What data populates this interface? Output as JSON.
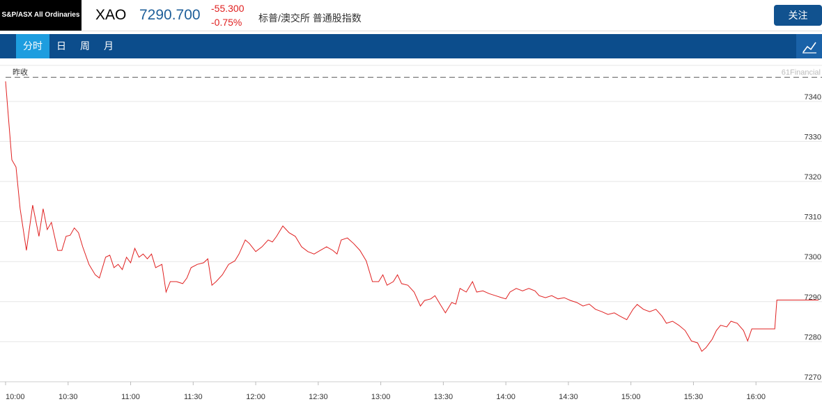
{
  "header": {
    "index_name": "S&P/ASX All Ordinaries",
    "symbol": "XAO",
    "price": "7290.700",
    "change": "-55.300",
    "change_pct": "-0.75%",
    "description": "标普/澳交所 普通股指数",
    "follow_button": "关注"
  },
  "tabs": [
    "分时",
    "日",
    "周",
    "月"
  ],
  "chart_data": {
    "type": "line",
    "grid": true,
    "reference_line": {
      "label": "昨收",
      "value": 7346,
      "color": "#777777"
    },
    "watermark": "61Financial",
    "xlim": [
      "10:00",
      "16:30"
    ],
    "xticks": [
      "10:00",
      "10:30",
      "11:00",
      "11:30",
      "12:00",
      "12:30",
      "13:00",
      "13:30",
      "14:00",
      "14:30",
      "15:00",
      "15:30",
      "16:00"
    ],
    "ylim": [
      7270,
      7349
    ],
    "yticks": [
      7270,
      7280,
      7290,
      7300,
      7310,
      7320,
      7330,
      7340
    ],
    "series": [
      {
        "color": "#e02020",
        "x": [
          "10:00",
          "10:01",
          "10:03",
          "10:05",
          "10:07",
          "10:10",
          "10:13",
          "10:16",
          "10:18",
          "10:20",
          "10:22",
          "10:25",
          "10:27",
          "10:29",
          "10:31",
          "10:33",
          "10:35",
          "10:37",
          "10:40",
          "10:43",
          "10:45",
          "10:48",
          "10:50",
          "10:52",
          "10:54",
          "10:56",
          "10:58",
          "11:00",
          "11:02",
          "11:04",
          "11:06",
          "11:08",
          "11:10",
          "11:12",
          "11:15",
          "11:17",
          "11:19",
          "11:22",
          "11:25",
          "11:27",
          "11:29",
          "11:32",
          "11:35",
          "11:37",
          "11:39",
          "11:41",
          "11:44",
          "11:47",
          "11:50",
          "11:52",
          "11:55",
          "11:57",
          "12:00",
          "12:03",
          "12:06",
          "12:08",
          "12:10",
          "12:13",
          "12:16",
          "12:19",
          "12:22",
          "12:25",
          "12:28",
          "12:31",
          "12:34",
          "12:37",
          "12:39",
          "12:41",
          "12:44",
          "12:47",
          "12:50",
          "12:53",
          "12:56",
          "12:59",
          "13:01",
          "13:03",
          "13:06",
          "13:08",
          "13:10",
          "13:13",
          "13:16",
          "13:19",
          "13:21",
          "13:24",
          "13:26",
          "13:29",
          "13:31",
          "13:34",
          "13:36",
          "13:38",
          "13:41",
          "13:44",
          "13:46",
          "13:49",
          "13:52",
          "13:55",
          "13:58",
          "14:00",
          "14:02",
          "14:05",
          "14:08",
          "14:11",
          "14:14",
          "14:16",
          "14:19",
          "14:22",
          "14:25",
          "14:28",
          "14:31",
          "14:34",
          "14:37",
          "14:40",
          "14:43",
          "14:46",
          "14:49",
          "14:52",
          "14:55",
          "14:58",
          "15:01",
          "15:03",
          "15:06",
          "15:09",
          "15:12",
          "15:15",
          "15:17",
          "15:20",
          "15:23",
          "15:26",
          "15:29",
          "15:32",
          "15:34",
          "15:36",
          "15:39",
          "15:41",
          "15:43",
          "15:46",
          "15:48",
          "15:51",
          "15:54",
          "15:56",
          "15:58",
          "16:00",
          "16:09",
          "16:10",
          "16:30"
        ],
        "values": [
          7345.0,
          7338.4,
          7325.4,
          7323.6,
          7313.2,
          7302.8,
          7314.1,
          7306.3,
          7313.2,
          7308.0,
          7309.8,
          7302.8,
          7302.8,
          7306.3,
          7306.6,
          7308.4,
          7307.2,
          7303.7,
          7299.3,
          7296.7,
          7295.9,
          7301.1,
          7301.6,
          7298.5,
          7299.3,
          7298.0,
          7301.1,
          7299.7,
          7303.3,
          7301.1,
          7301.9,
          7300.7,
          7301.9,
          7298.5,
          7299.3,
          7292.4,
          7295.0,
          7295.0,
          7294.5,
          7295.9,
          7298.5,
          7299.3,
          7299.7,
          7300.7,
          7294.1,
          7295.0,
          7296.7,
          7299.3,
          7300.2,
          7301.9,
          7305.4,
          7304.5,
          7302.5,
          7303.7,
          7305.4,
          7304.9,
          7306.3,
          7308.9,
          7307.2,
          7306.3,
          7303.7,
          7302.5,
          7301.9,
          7302.8,
          7303.7,
          7302.8,
          7301.9,
          7305.4,
          7305.9,
          7304.5,
          7302.8,
          7300.2,
          7295.0,
          7295.0,
          7296.7,
          7294.1,
          7295.0,
          7296.7,
          7294.5,
          7294.1,
          7292.4,
          7288.9,
          7290.3,
          7290.7,
          7291.5,
          7288.9,
          7287.2,
          7289.8,
          7289.4,
          7293.3,
          7292.4,
          7295.0,
          7292.4,
          7292.7,
          7292.0,
          7291.5,
          7291.0,
          7290.7,
          7292.4,
          7293.3,
          7292.7,
          7293.3,
          7292.7,
          7291.5,
          7291.0,
          7291.5,
          7290.7,
          7291.0,
          7290.3,
          7289.8,
          7288.9,
          7289.4,
          7288.1,
          7287.5,
          7286.8,
          7287.2,
          7286.3,
          7285.5,
          7288.1,
          7289.3,
          7288.1,
          7287.5,
          7288.1,
          7286.3,
          7284.6,
          7285.1,
          7284.1,
          7282.8,
          7280.2,
          7279.7,
          7277.6,
          7278.5,
          7280.6,
          7282.8,
          7284.1,
          7283.7,
          7285.1,
          7284.6,
          7282.8,
          7280.2,
          7283.2,
          7283.2,
          7283.2,
          7290.4,
          7290.4
        ]
      }
    ]
  }
}
